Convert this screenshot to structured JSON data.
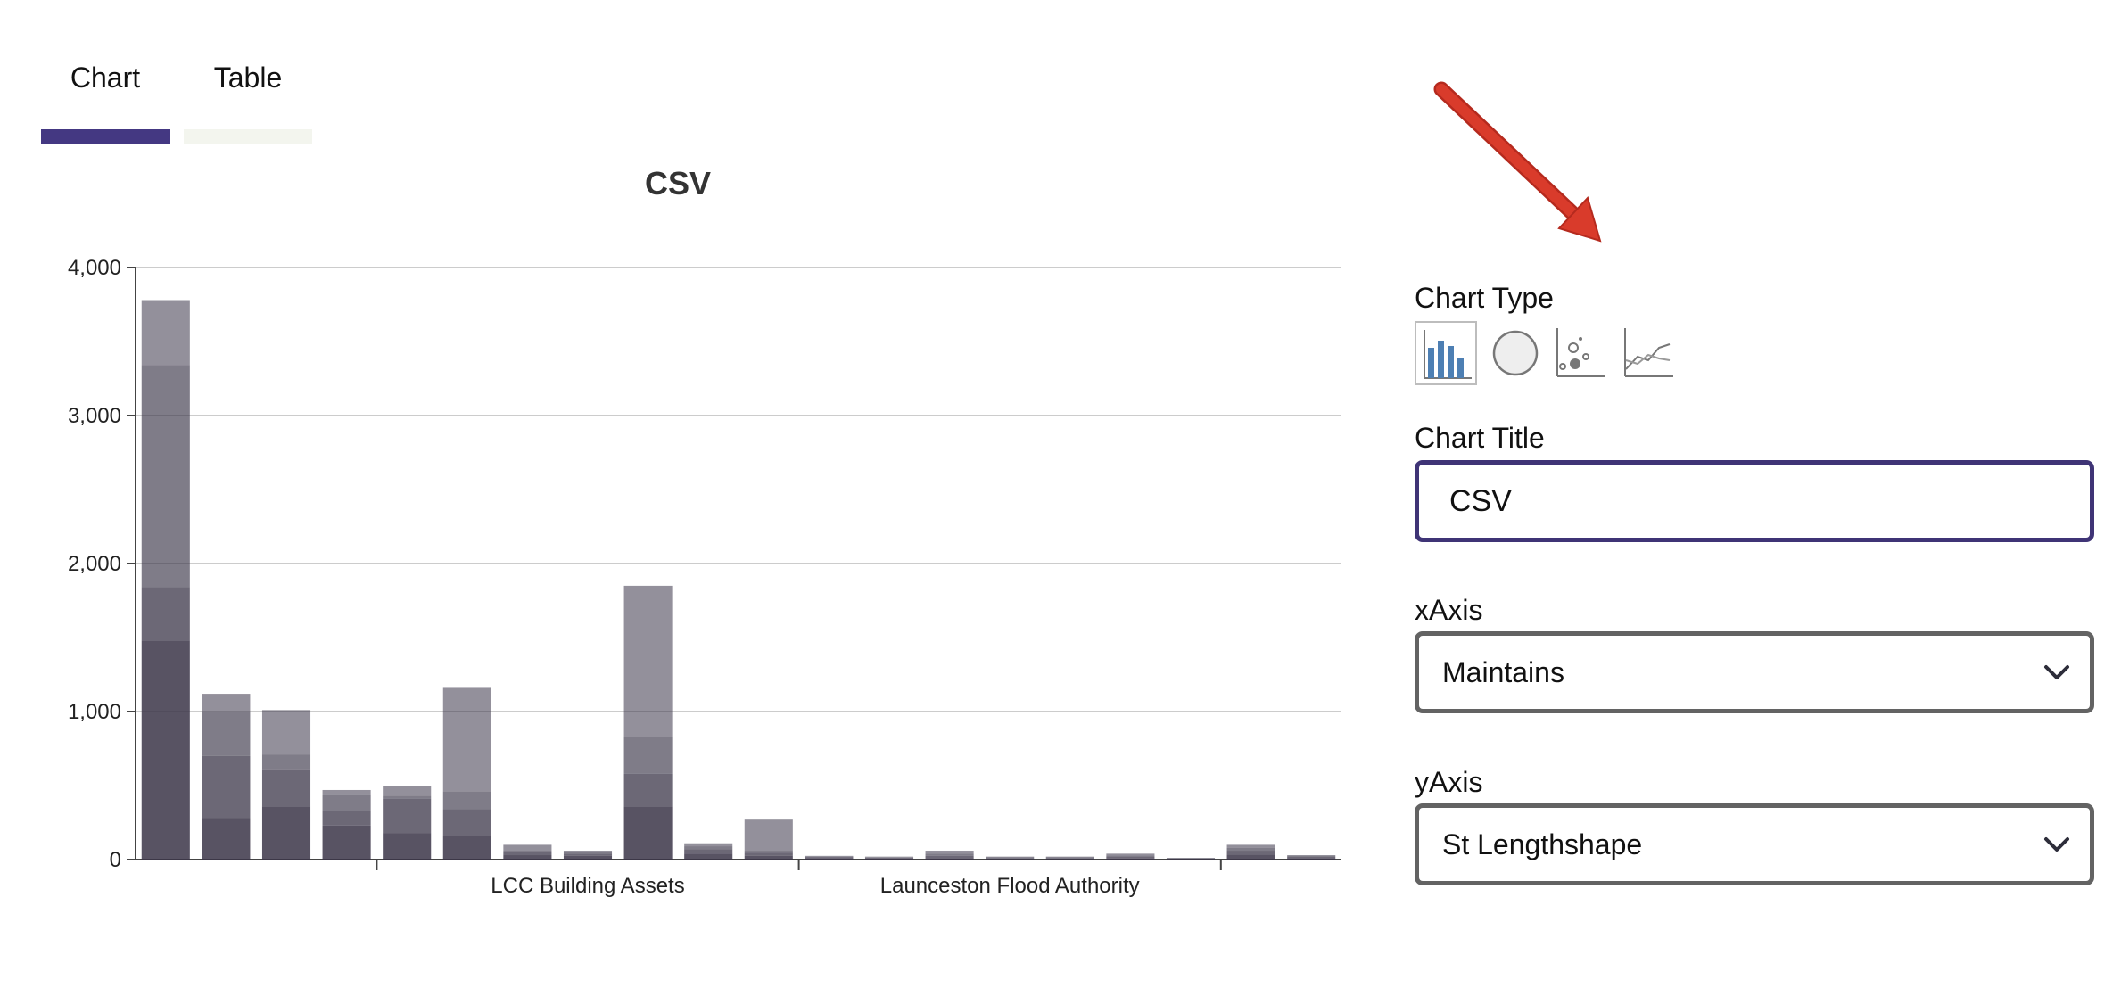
{
  "tabs": [
    {
      "label": "Chart",
      "active": true
    },
    {
      "label": "Table",
      "active": false
    }
  ],
  "chart_data": {
    "type": "bar",
    "stacked": true,
    "title": "CSV",
    "xlabel": "",
    "ylabel": "",
    "ylim": [
      0,
      4000
    ],
    "yticks": [
      0,
      1000,
      2000,
      3000,
      4000
    ],
    "ytick_labels": [
      "0",
      "1,000",
      "2,000",
      "3,000",
      "4,000"
    ],
    "grid": true,
    "group_labels": [
      "",
      "LCC Building Assets",
      "Launceston Flood Authority",
      ""
    ],
    "group_boundaries": [
      4,
      11,
      18
    ],
    "bar_color": "#3b3548",
    "x": [
      "1",
      "2",
      "3",
      "4",
      "5",
      "6",
      "7",
      "8",
      "9",
      "10",
      "11",
      "12",
      "13",
      "14",
      "15",
      "16",
      "17",
      "18",
      "19",
      "20"
    ],
    "series": [
      {
        "values": [
          1480,
          280,
          360,
          230,
          180,
          160,
          30,
          25,
          360,
          40,
          25,
          10,
          8,
          10,
          5,
          5,
          8,
          4,
          35,
          10
        ]
      },
      {
        "values": [
          360,
          420,
          250,
          100,
          230,
          180,
          20,
          15,
          220,
          30,
          20,
          5,
          5,
          15,
          5,
          5,
          10,
          3,
          25,
          8
        ]
      },
      {
        "values": [
          1500,
          300,
          100,
          110,
          20,
          120,
          10,
          10,
          250,
          20,
          15,
          5,
          3,
          15,
          5,
          5,
          10,
          2,
          20,
          6
        ]
      },
      {
        "values": [
          440,
          120,
          300,
          30,
          70,
          700,
          40,
          10,
          1020,
          20,
          210,
          5,
          4,
          20,
          5,
          5,
          12,
          3,
          20,
          6
        ]
      }
    ]
  },
  "annotation": {
    "color": "#d93b2b"
  },
  "sidebar": {
    "chart_type_label": "Chart Type",
    "chart_types": [
      {
        "icon": "bar-chart-icon",
        "selected": true
      },
      {
        "icon": "pie-chart-icon",
        "selected": false
      },
      {
        "icon": "scatter-chart-icon",
        "selected": false
      },
      {
        "icon": "line-chart-icon",
        "selected": false
      }
    ],
    "chart_title_label": "Chart Title",
    "chart_title_value": "CSV",
    "xaxis_label": "xAxis",
    "xaxis_value": "Maintains",
    "yaxis_label": "yAxis",
    "yaxis_value": "St Lengthshape"
  },
  "colors": {
    "accent": "#443882",
    "input_border": "#3f3476",
    "select_border": "#636363"
  }
}
